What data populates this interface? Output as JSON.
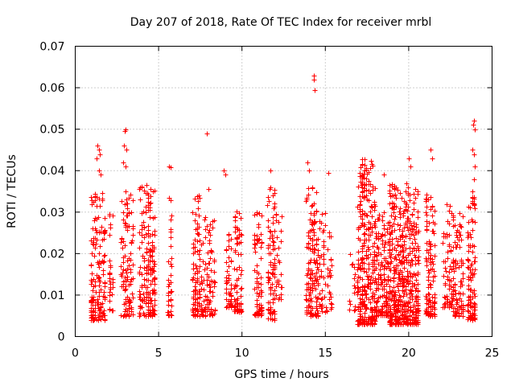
{
  "chart_data": {
    "type": "scatter",
    "title": "Day 207 of 2018, Rate Of TEC Index for receiver mrbl",
    "xlabel": "GPS time / hours",
    "ylabel": "ROTI / TECUs",
    "xlim": [
      0,
      25
    ],
    "ylim": [
      0,
      0.07
    ],
    "xticks": [
      0,
      5,
      10,
      15,
      20,
      25
    ],
    "xtick_labels": [
      "0",
      "5",
      "10",
      "15",
      "20",
      "25"
    ],
    "yticks": [
      0,
      0.01,
      0.02,
      0.03,
      0.04,
      0.05,
      0.06,
      0.07
    ],
    "ytick_labels": [
      "0",
      "0.01",
      "0.02",
      "0.03",
      "0.04",
      "0.05",
      "0.06",
      "0.07"
    ],
    "grid": true,
    "marker": "plus",
    "color": "#ff0000",
    "outliers": [
      {
        "x": 3.0,
        "y": 0.05
      },
      {
        "x": 2.95,
        "y": 0.0495
      },
      {
        "x": 2.9,
        "y": 0.046
      },
      {
        "x": 3.05,
        "y": 0.045
      },
      {
        "x": 2.85,
        "y": 0.042
      },
      {
        "x": 3.0,
        "y": 0.041
      },
      {
        "x": 1.35,
        "y": 0.046
      },
      {
        "x": 1.4,
        "y": 0.045
      },
      {
        "x": 1.45,
        "y": 0.044
      },
      {
        "x": 1.3,
        "y": 0.043
      },
      {
        "x": 1.4,
        "y": 0.04
      },
      {
        "x": 1.5,
        "y": 0.039
      },
      {
        "x": 5.6,
        "y": 0.041
      },
      {
        "x": 5.7,
        "y": 0.0408
      },
      {
        "x": 7.9,
        "y": 0.049
      },
      {
        "x": 8.0,
        "y": 0.0355
      },
      {
        "x": 8.9,
        "y": 0.04
      },
      {
        "x": 9.0,
        "y": 0.039
      },
      {
        "x": 11.7,
        "y": 0.04
      },
      {
        "x": 14.3,
        "y": 0.063
      },
      {
        "x": 14.3,
        "y": 0.062
      },
      {
        "x": 14.35,
        "y": 0.0595
      },
      {
        "x": 13.9,
        "y": 0.042
      },
      {
        "x": 14.0,
        "y": 0.04
      },
      {
        "x": 15.2,
        "y": 0.0395
      },
      {
        "x": 18.5,
        "y": 0.039
      },
      {
        "x": 20.0,
        "y": 0.043
      },
      {
        "x": 20.1,
        "y": 0.041
      },
      {
        "x": 21.3,
        "y": 0.045
      },
      {
        "x": 21.4,
        "y": 0.043
      },
      {
        "x": 23.9,
        "y": 0.052
      },
      {
        "x": 23.85,
        "y": 0.051
      },
      {
        "x": 23.95,
        "y": 0.05
      },
      {
        "x": 23.8,
        "y": 0.045
      },
      {
        "x": 23.9,
        "y": 0.044
      },
      {
        "x": 23.95,
        "y": 0.041
      },
      {
        "x": 23.9,
        "y": 0.038
      },
      {
        "x": 23.8,
        "y": 0.035
      }
    ],
    "clusters": [
      {
        "x_min": 0.9,
        "x_max": 1.8,
        "y_min": 0.004,
        "y_max": 0.036,
        "count": 160
      },
      {
        "x_min": 2.0,
        "x_max": 2.3,
        "y_min": 0.006,
        "y_max": 0.03,
        "count": 30
      },
      {
        "x_min": 2.7,
        "x_max": 3.5,
        "y_min": 0.005,
        "y_max": 0.035,
        "count": 110
      },
      {
        "x_min": 3.8,
        "x_max": 4.3,
        "y_min": 0.005,
        "y_max": 0.038,
        "count": 70
      },
      {
        "x_min": 4.3,
        "x_max": 4.8,
        "y_min": 0.005,
        "y_max": 0.036,
        "count": 120
      },
      {
        "x_min": 5.5,
        "x_max": 5.8,
        "y_min": 0.005,
        "y_max": 0.035,
        "count": 40
      },
      {
        "x_min": 7.0,
        "x_max": 7.5,
        "y_min": 0.005,
        "y_max": 0.034,
        "count": 90
      },
      {
        "x_min": 7.5,
        "x_max": 8.4,
        "y_min": 0.005,
        "y_max": 0.03,
        "count": 100
      },
      {
        "x_min": 9.0,
        "x_max": 9.4,
        "y_min": 0.007,
        "y_max": 0.025,
        "count": 45
      },
      {
        "x_min": 9.5,
        "x_max": 10.0,
        "y_min": 0.006,
        "y_max": 0.031,
        "count": 80
      },
      {
        "x_min": 10.7,
        "x_max": 11.2,
        "y_min": 0.005,
        "y_max": 0.03,
        "count": 75
      },
      {
        "x_min": 11.5,
        "x_max": 12.0,
        "y_min": 0.004,
        "y_max": 0.037,
        "count": 90
      },
      {
        "x_min": 12.0,
        "x_max": 12.4,
        "y_min": 0.009,
        "y_max": 0.03,
        "count": 25
      },
      {
        "x_min": 13.8,
        "x_max": 14.6,
        "y_min": 0.005,
        "y_max": 0.036,
        "count": 150
      },
      {
        "x_min": 14.6,
        "x_max": 15.4,
        "y_min": 0.006,
        "y_max": 0.03,
        "count": 60
      },
      {
        "x_min": 16.4,
        "x_max": 16.8,
        "y_min": 0.006,
        "y_max": 0.02,
        "count": 15
      },
      {
        "x_min": 16.9,
        "x_max": 18.0,
        "y_min": 0.003,
        "y_max": 0.043,
        "count": 340
      },
      {
        "x_min": 18.0,
        "x_max": 18.8,
        "y_min": 0.005,
        "y_max": 0.03,
        "count": 150
      },
      {
        "x_min": 18.8,
        "x_max": 20.0,
        "y_min": 0.003,
        "y_max": 0.037,
        "count": 360
      },
      {
        "x_min": 20.0,
        "x_max": 20.6,
        "y_min": 0.003,
        "y_max": 0.036,
        "count": 160
      },
      {
        "x_min": 21.0,
        "x_max": 21.6,
        "y_min": 0.005,
        "y_max": 0.036,
        "count": 110
      },
      {
        "x_min": 22.0,
        "x_max": 22.6,
        "y_min": 0.007,
        "y_max": 0.033,
        "count": 60
      },
      {
        "x_min": 22.6,
        "x_max": 23.3,
        "y_min": 0.005,
        "y_max": 0.03,
        "count": 100
      },
      {
        "x_min": 23.5,
        "x_max": 24.0,
        "y_min": 0.004,
        "y_max": 0.034,
        "count": 110
      }
    ]
  }
}
